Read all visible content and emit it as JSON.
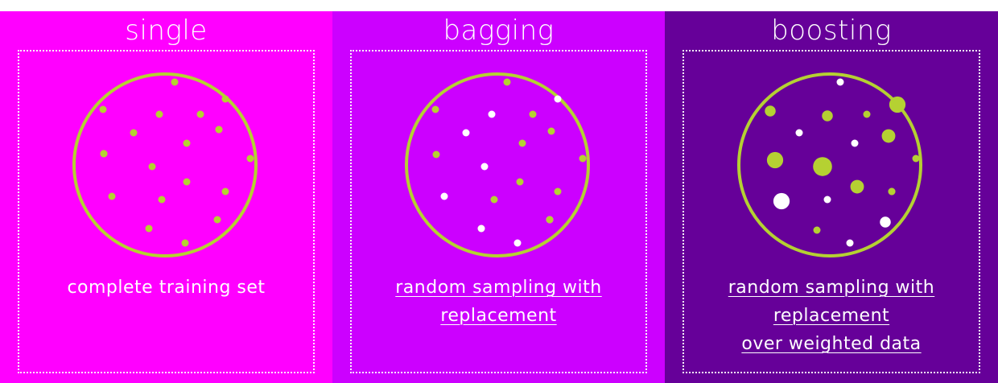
{
  "colors": {
    "single_bg": "#ff00ff",
    "bagging_bg": "#cc00ff",
    "boosting_bg": "#660099",
    "circle": "#b5d132",
    "point_green": "#b5d132",
    "point_white": "#ffffff"
  },
  "panels": [
    {
      "title": "single",
      "caption_lines": [
        "complete training set"
      ],
      "underlined": false,
      "points": [
        {
          "c": "green",
          "w": 1
        },
        {
          "c": "green",
          "w": 1
        },
        {
          "c": "green",
          "w": 1
        },
        {
          "c": "green",
          "w": 1
        },
        {
          "c": "green",
          "w": 1
        },
        {
          "c": "green",
          "w": 1
        },
        {
          "c": "green",
          "w": 1
        },
        {
          "c": "green",
          "w": 1
        },
        {
          "c": "green",
          "w": 1
        },
        {
          "c": "green",
          "w": 1
        },
        {
          "c": "green",
          "w": 1
        },
        {
          "c": "green",
          "w": 1
        },
        {
          "c": "green",
          "w": 1
        },
        {
          "c": "green",
          "w": 1
        },
        {
          "c": "green",
          "w": 1
        },
        {
          "c": "green",
          "w": 1
        },
        {
          "c": "green",
          "w": 1
        },
        {
          "c": "green",
          "w": 1
        },
        {
          "c": "green",
          "w": 1
        },
        {
          "c": "green",
          "w": 1
        }
      ]
    },
    {
      "title": "bagging",
      "caption_lines": [
        "random sampling with",
        "replacement"
      ],
      "underlined": true,
      "points": [
        {
          "c": "green",
          "w": 1
        },
        {
          "c": "white",
          "w": 1
        },
        {
          "c": "green",
          "w": 1
        },
        {
          "c": "white",
          "w": 1
        },
        {
          "c": "green",
          "w": 1
        },
        {
          "c": "green",
          "w": 1
        },
        {
          "c": "white",
          "w": 1
        },
        {
          "c": "green",
          "w": 1
        },
        {
          "c": "green",
          "w": 1
        },
        {
          "c": "green",
          "w": 1
        },
        {
          "c": "white",
          "w": 1
        },
        {
          "c": "green",
          "w": 1
        },
        {
          "c": "white",
          "w": 1
        },
        {
          "c": "green",
          "w": 1
        },
        {
          "c": "green",
          "w": 1
        },
        {
          "c": "white",
          "w": 1
        },
        {
          "c": "green",
          "w": 1
        },
        {
          "c": "white",
          "w": 1
        },
        {
          "c": "white",
          "w": 1
        },
        {
          "c": "green",
          "w": 1
        }
      ]
    },
    {
      "title": "boosting",
      "caption_lines": [
        "random sampling with",
        "replacement",
        "over weighted data"
      ],
      "underlined": true,
      "points": [
        {
          "c": "white",
          "w": 1
        },
        {
          "c": "green",
          "w": 3
        },
        {
          "c": "green",
          "w": 2
        },
        {
          "c": "green",
          "w": 1
        },
        {
          "c": "green",
          "w": 2
        },
        {
          "c": "white",
          "w": 1
        },
        {
          "c": "green",
          "w": 2.5
        },
        {
          "c": "white",
          "w": 1
        },
        {
          "c": "green",
          "w": 3
        },
        {
          "c": "green",
          "w": 3.5
        },
        {
          "c": "green",
          "w": 1
        },
        {
          "c": "white",
          "w": 1
        },
        {
          "c": "green",
          "w": 2.5
        },
        {
          "c": "white",
          "w": 3
        },
        {
          "c": "green",
          "w": 1
        },
        {
          "c": "white",
          "w": 2
        },
        {
          "c": "green",
          "w": 1.5
        },
        {
          "c": "white",
          "w": 1
        },
        {
          "c": "green",
          "w": 1
        }
      ]
    }
  ]
}
